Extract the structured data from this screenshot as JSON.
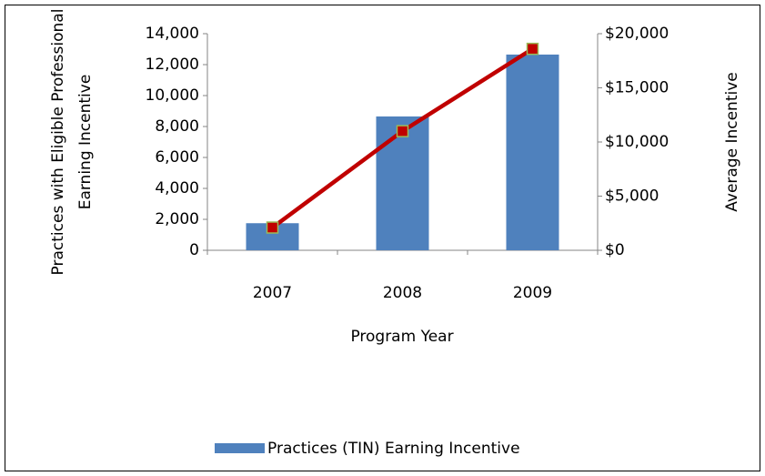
{
  "chart_data": {
    "type": "bar_line",
    "xlabel": "Program Year",
    "ylabel": [
      "Practices with Eligible Professional",
      "Earning Incentive"
    ],
    "y2label": "Average Incentive",
    "categories": [
      "2007",
      "2008",
      "2009"
    ],
    "series": [
      {
        "name": "Practices (TIN) Earning Incentive",
        "type": "bar",
        "color": "#4f81bd",
        "values": [
          1750,
          8650,
          12650
        ]
      },
      {
        "type": "line",
        "axis": "y2",
        "color": "#c00000",
        "marker_edge": "#9bbb59",
        "values": [
          2100,
          11000,
          18600
        ]
      }
    ],
    "ylim": [
      0,
      14000
    ],
    "yticks": [
      0,
      {
        "value": 2000,
        "label": "2,000"
      },
      {
        "value": 4000,
        "label": "4,000"
      },
      {
        "value": 6000,
        "label": "6,000"
      },
      {
        "value": 8000,
        "label": "8,000"
      },
      {
        "value": 10000,
        "label": "10,000"
      },
      {
        "value": 12000,
        "label": "12,000"
      },
      {
        "value": 14000,
        "label": "14,000"
      }
    ],
    "y2lim": [
      0,
      20000
    ],
    "y2ticks": [
      {
        "value": 0,
        "label": "$0"
      },
      {
        "value": 5000,
        "label": "$5,000"
      },
      {
        "value": 10000,
        "label": "$10,000"
      },
      {
        "value": 15000,
        "label": "$15,000"
      },
      {
        "value": 20000,
        "label": "$20,000"
      }
    ],
    "grid": false,
    "legend": "bottom"
  }
}
